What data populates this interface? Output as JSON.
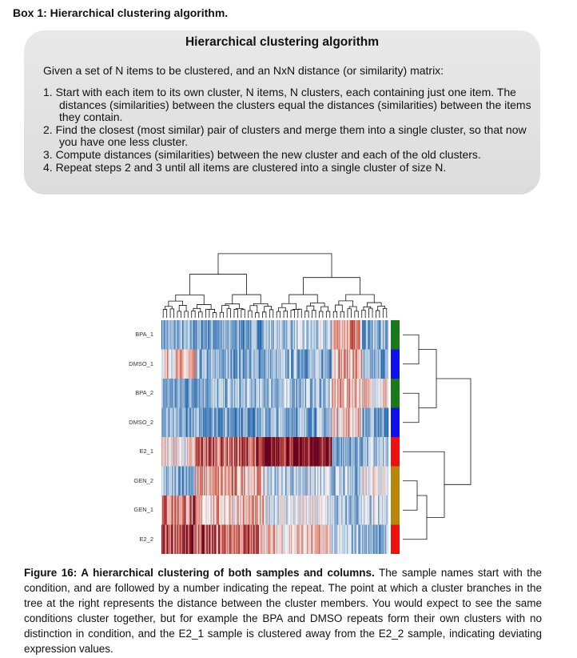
{
  "box": {
    "heading": "Box 1: Hierarchical clustering algorithm.",
    "title": "Hierarchical clustering algorithm",
    "intro": "Given a set of N items to be clustered, and an NxN distance (or similarity) matrix:",
    "steps": [
      "1. Start with each item to its own cluster, N items, N clusters, each containing just one item. The distances (similarities) between the clusters equal the distances (similarities) between the items they contain.",
      "2. Find the closest (most similar) pair of clusters and merge them into a single cluster, so that now you have one less cluster.",
      "3. Compute distances (similarities) between the new cluster and each of the old clusters.",
      "4. Repeat steps 2 and 3 until all items are clustered into a single cluster of size N."
    ]
  },
  "heatmap": {
    "rows": [
      "BPA_1",
      "DMSO_1",
      "BPA_2",
      "DMSO_2",
      "E2_1",
      "GEN_2",
      "GEN_1",
      "E2_2"
    ],
    "row_colors": [
      "#1a7a1a",
      "#1010ee",
      "#1a7a1a",
      "#1010ee",
      "#ee1111",
      "#b8860b",
      "#b8860b",
      "#ee1111"
    ],
    "color_scale": {
      "low": "#2166ac",
      "mid": "#f7f7f7",
      "high": "#67001f"
    }
  },
  "caption": {
    "bold": "Figure 16: A hierarchical clustering of both samples and columns.",
    "text": " The sample names start with the condition, and are followed by a number indicating the repeat. The point at which a cluster branches in the tree at the right represents the distance between the cluster members. You would expect to see the same conditions cluster together, but for example the BPA and DMSO repeats form their own clusters with no distinction in condition, and the E2_1 sample is clustered away from the E2_2 sample, indicating deviating expression values."
  }
}
